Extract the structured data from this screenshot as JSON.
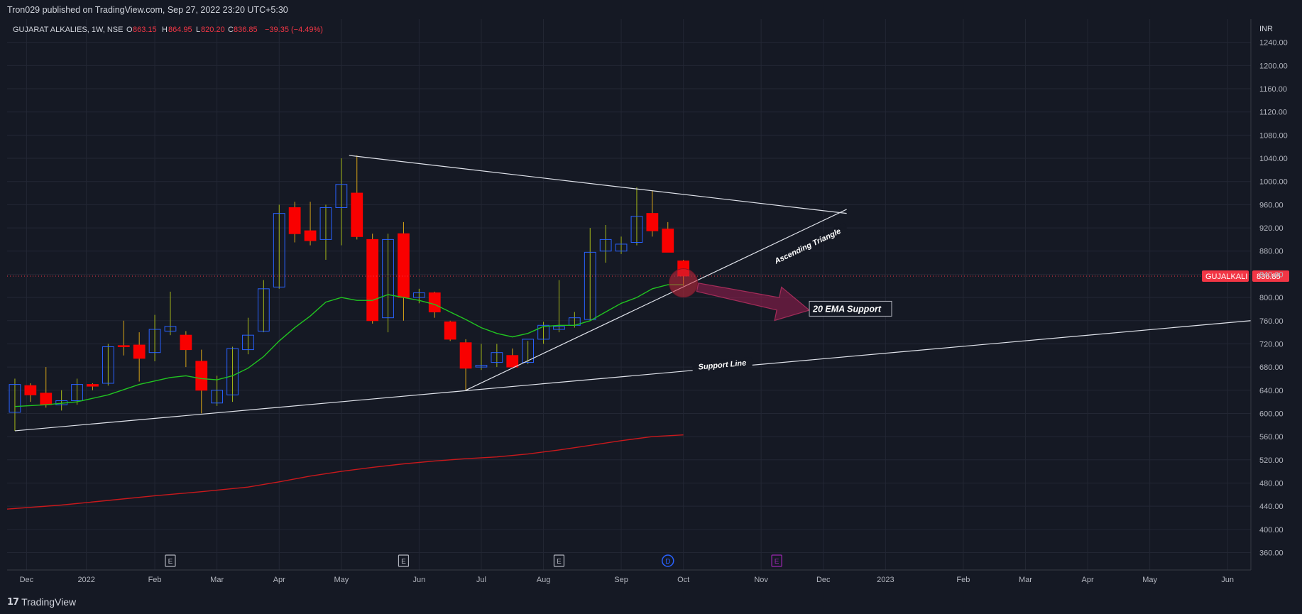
{
  "header": {
    "publish_text": "Tron029 published on TradingView.com, Sep 27, 2022 23:20 UTC+5:30"
  },
  "legend": {
    "symbol": "GUJARAT ALKALIES, 1W, NSE",
    "o_label": "O",
    "o_value": "863.15",
    "h_label": "H",
    "h_value": "864.95",
    "l_label": "L",
    "l_value": "820.20",
    "c_label": "C",
    "c_value": "836.85",
    "change": "−39.35 (−4.49%)"
  },
  "footer": {
    "brand": "TradingView",
    "logo_icon": "tradingview-logo-icon"
  },
  "colors": {
    "background": "#151924",
    "grid": "#232734",
    "up_candle": "#2962ff",
    "down_candle": "#f90000",
    "ema20": "#21c421",
    "ema200": "#c8191c",
    "trend": "#e0e3eb",
    "price_label": "#f23645"
  },
  "chart_data": {
    "type": "candlestick",
    "title": "GUJARAT ALKALIES, 1W, NSE",
    "currency": "INR",
    "ylim": [
      330,
      1280
    ],
    "y_ticks": [
      360,
      400,
      440,
      480,
      520,
      560,
      600,
      640,
      680,
      720,
      760,
      800,
      840,
      880,
      920,
      960,
      1000,
      1040,
      1080,
      1120,
      1160,
      1200,
      1240
    ],
    "x_ticks": [
      "Dec",
      "2022",
      "Feb",
      "Mar",
      "Apr",
      "May",
      "Jun",
      "Jul",
      "Aug",
      "Sep",
      "Oct",
      "Nov",
      "Dec",
      "2023",
      "Feb",
      "Mar",
      "Apr",
      "May",
      "Jun"
    ],
    "x_tick_positions": [
      0.75,
      4.6,
      9.0,
      13.0,
      17.0,
      21.0,
      26.0,
      30.0,
      34.0,
      39.0,
      43.0,
      48.0,
      52.0,
      56.0,
      61.0,
      65.0,
      69.0,
      73.0,
      78.0
    ],
    "x_range": [
      -0.5,
      79.5
    ],
    "candles": [
      {
        "o": 602,
        "h": 660,
        "l": 570,
        "c": 650
      },
      {
        "o": 648,
        "h": 652,
        "l": 620,
        "c": 632
      },
      {
        "o": 635,
        "h": 680,
        "l": 610,
        "c": 615
      },
      {
        "o": 615,
        "h": 640,
        "l": 605,
        "c": 622
      },
      {
        "o": 622,
        "h": 660,
        "l": 615,
        "c": 650
      },
      {
        "o": 650,
        "h": 652,
        "l": 640,
        "c": 647
      },
      {
        "o": 652,
        "h": 720,
        "l": 648,
        "c": 715
      },
      {
        "o": 717,
        "h": 760,
        "l": 700,
        "c": 715
      },
      {
        "o": 718,
        "h": 740,
        "l": 655,
        "c": 695
      },
      {
        "o": 705,
        "h": 770,
        "l": 690,
        "c": 745
      },
      {
        "o": 742,
        "h": 810,
        "l": 735,
        "c": 750
      },
      {
        "o": 735,
        "h": 742,
        "l": 680,
        "c": 710
      },
      {
        "o": 690,
        "h": 710,
        "l": 600,
        "c": 640
      },
      {
        "o": 618,
        "h": 665,
        "l": 613,
        "c": 640
      },
      {
        "o": 632,
        "h": 715,
        "l": 620,
        "c": 712
      },
      {
        "o": 710,
        "h": 765,
        "l": 702,
        "c": 735
      },
      {
        "o": 742,
        "h": 830,
        "l": 740,
        "c": 815
      },
      {
        "o": 818,
        "h": 960,
        "l": 815,
        "c": 945
      },
      {
        "o": 955,
        "h": 965,
        "l": 895,
        "c": 910
      },
      {
        "o": 915,
        "h": 965,
        "l": 890,
        "c": 898
      },
      {
        "o": 900,
        "h": 960,
        "l": 865,
        "c": 955
      },
      {
        "o": 955,
        "h": 1040,
        "l": 890,
        "c": 995
      },
      {
        "o": 980,
        "h": 1045,
        "l": 900,
        "c": 905
      },
      {
        "o": 900,
        "h": 910,
        "l": 755,
        "c": 760
      },
      {
        "o": 765,
        "h": 910,
        "l": 740,
        "c": 900
      },
      {
        "o": 910,
        "h": 930,
        "l": 760,
        "c": 800
      },
      {
        "o": 800,
        "h": 815,
        "l": 790,
        "c": 808
      },
      {
        "o": 808,
        "h": 810,
        "l": 765,
        "c": 775
      },
      {
        "o": 758,
        "h": 760,
        "l": 725,
        "c": 728
      },
      {
        "o": 722,
        "h": 728,
        "l": 640,
        "c": 678
      },
      {
        "o": 680,
        "h": 720,
        "l": 675,
        "c": 683
      },
      {
        "o": 688,
        "h": 720,
        "l": 680,
        "c": 705
      },
      {
        "o": 700,
        "h": 712,
        "l": 680,
        "c": 680
      },
      {
        "o": 688,
        "h": 725,
        "l": 685,
        "c": 728
      },
      {
        "o": 728,
        "h": 758,
        "l": 720,
        "c": 752
      },
      {
        "o": 745,
        "h": 830,
        "l": 740,
        "c": 750
      },
      {
        "o": 752,
        "h": 775,
        "l": 748,
        "c": 765
      },
      {
        "o": 762,
        "h": 920,
        "l": 760,
        "c": 878
      },
      {
        "o": 880,
        "h": 925,
        "l": 860,
        "c": 900
      },
      {
        "o": 880,
        "h": 905,
        "l": 875,
        "c": 892
      },
      {
        "o": 895,
        "h": 990,
        "l": 890,
        "c": 940
      },
      {
        "o": 945,
        "h": 985,
        "l": 905,
        "c": 915
      },
      {
        "o": 918,
        "h": 930,
        "l": 880,
        "c": 878
      },
      {
        "o": 863,
        "h": 865,
        "l": 820,
        "c": 837
      }
    ],
    "ema20": [
      [
        0,
        612
      ],
      [
        2,
        615
      ],
      [
        4,
        620
      ],
      [
        6,
        632
      ],
      [
        8,
        650
      ],
      [
        10,
        662
      ],
      [
        11,
        665
      ],
      [
        12,
        660
      ],
      [
        13,
        658
      ],
      [
        14,
        665
      ],
      [
        15,
        678
      ],
      [
        16,
        698
      ],
      [
        17,
        725
      ],
      [
        18,
        748
      ],
      [
        19,
        768
      ],
      [
        20,
        792
      ],
      [
        21,
        800
      ],
      [
        22,
        795
      ],
      [
        23,
        795
      ],
      [
        24,
        805
      ],
      [
        25,
        800
      ],
      [
        26,
        795
      ],
      [
        27,
        788
      ],
      [
        28,
        775
      ],
      [
        29,
        762
      ],
      [
        30,
        748
      ],
      [
        31,
        738
      ],
      [
        32,
        732
      ],
      [
        33,
        738
      ],
      [
        34,
        750
      ],
      [
        35,
        752
      ],
      [
        36,
        752
      ],
      [
        37,
        760
      ],
      [
        38,
        775
      ],
      [
        39,
        790
      ],
      [
        40,
        800
      ],
      [
        41,
        815
      ],
      [
        42,
        822
      ],
      [
        43,
        822
      ]
    ],
    "ema200": [
      [
        -0.5,
        435
      ],
      [
        3,
        442
      ],
      [
        6,
        450
      ],
      [
        9,
        458
      ],
      [
        12,
        465
      ],
      [
        15,
        473
      ],
      [
        17,
        482
      ],
      [
        19,
        492
      ],
      [
        21,
        500
      ],
      [
        23,
        507
      ],
      [
        25,
        513
      ],
      [
        27,
        518
      ],
      [
        29,
        522
      ],
      [
        31,
        525
      ],
      [
        33,
        530
      ],
      [
        35,
        537
      ],
      [
        37,
        545
      ],
      [
        39,
        553
      ],
      [
        41,
        560
      ],
      [
        43,
        563
      ]
    ],
    "current_price": 836.85,
    "price_label": "GUJALKALI",
    "price_value": "836.85",
    "trendlines": [
      {
        "name": "resistance",
        "from": [
          21.5,
          1045
        ],
        "to": [
          53.5,
          945
        ]
      },
      {
        "name": "support-line",
        "from": [
          0,
          570
        ],
        "to": [
          79.5,
          760
        ],
        "label": "Support Line",
        "label_at": [
          45.5,
          683
        ]
      },
      {
        "name": "ascending-triangle",
        "from": [
          29,
          640
        ],
        "to": [
          53.5,
          952
        ],
        "label": "Ascending Triangle",
        "label_at": [
          51,
          888
        ]
      }
    ],
    "annotation": {
      "text": "20 EMA Support",
      "at": [
        53.5,
        780
      ]
    },
    "event_markers": [
      {
        "x": 10,
        "label": "E",
        "color": "#b2b5be"
      },
      {
        "x": 25,
        "label": "E",
        "color": "#b2b5be"
      },
      {
        "x": 35,
        "label": "E",
        "color": "#b2b5be"
      },
      {
        "x": 42,
        "label": "D",
        "color": "#2962ff"
      },
      {
        "x": 49,
        "label": "E",
        "color": "#9c27b0"
      }
    ],
    "currency_label": "INR"
  }
}
